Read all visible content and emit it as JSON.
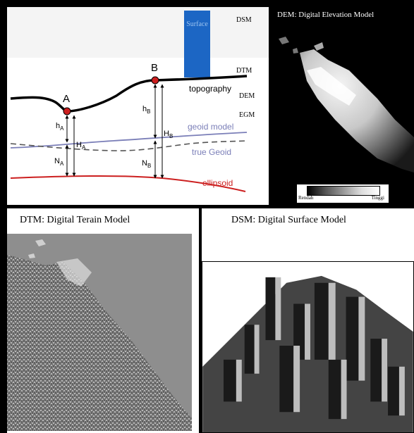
{
  "diagram": {
    "surface_label": "Surface",
    "dsm_label": "DSM",
    "dtm_label": "DTM",
    "dem_label": "DEM",
    "egm_label": "EGM",
    "point_a": "A",
    "point_b": "B",
    "topography_label": "topography",
    "geoid_model_label": "geoid model",
    "true_geoid_label": "true Geoid",
    "ellipsoid_label": "ellipsoid",
    "h_a": "h",
    "h_a_sub": "A",
    "H_a": "H",
    "H_a_sub": "A",
    "N_a": "N",
    "N_a_sub": "A",
    "h_b": "h",
    "h_b_sub": "B",
    "H_b": "H",
    "H_b_sub": "B",
    "N_b": "N",
    "N_b_sub": "B",
    "colors": {
      "topography": "#000000",
      "point": "#cc1f1f",
      "geoid": "#7b7fb8",
      "ellipsoid": "#cc1f1f",
      "surface": "#1c66c4"
    }
  },
  "dem_panel": {
    "title": "DEM: Digital Elevation Model",
    "legend_low": "Rendah",
    "legend_high": "Tinggi"
  },
  "dtm_panel": {
    "title": "DTM: Digital Terain Model"
  },
  "dsm_panel": {
    "title": "DSM: Digital Surface Model"
  }
}
